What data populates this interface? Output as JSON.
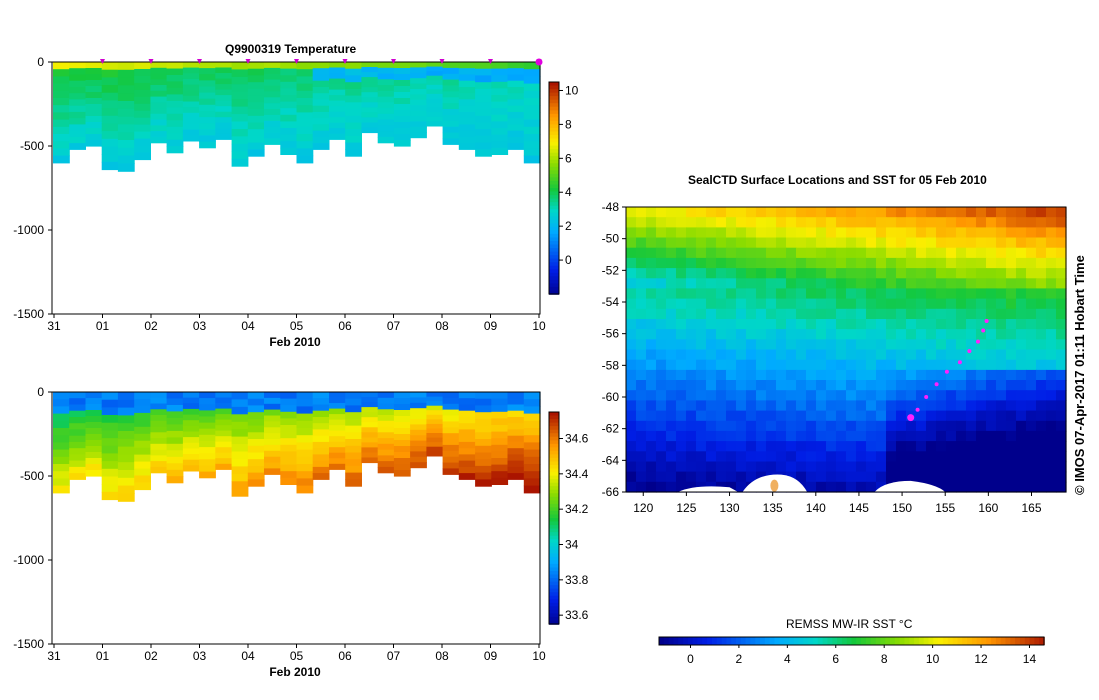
{
  "chart_data": [
    {
      "type": "heatmap",
      "id": "temperature",
      "title": "Q9900319  Temperature",
      "xlabel": "Feb 2010",
      "ylabel": "",
      "x_tick_labels": [
        "31",
        "01",
        "02",
        "03",
        "04",
        "05",
        "06",
        "07",
        "08",
        "09",
        "10"
      ],
      "y_tick_labels": [
        "0",
        "-500",
        "-1000",
        "-1500"
      ],
      "y_ticks": [
        0,
        -500,
        -1000,
        -1500
      ],
      "ylim": [
        -1500,
        0
      ],
      "colorbar": {
        "ticks": [
          10,
          8,
          6,
          4,
          2,
          0
        ],
        "tick_labels": [
          "10",
          "8",
          "6",
          "4",
          "2",
          "0"
        ],
        "range": [
          -2,
          10.5
        ]
      },
      "profile_markers": [
        "01",
        "02",
        "03",
        "04",
        "05",
        "06",
        "07",
        "08",
        "09",
        "10"
      ],
      "profile_depths": [
        600,
        520,
        500,
        640,
        650,
        580,
        480,
        540,
        470,
        510,
        460,
        620,
        560,
        490,
        550,
        600,
        520,
        460,
        560,
        420,
        480,
        500,
        450,
        380,
        490,
        520,
        560,
        550,
        520,
        600
      ]
    },
    {
      "type": "heatmap",
      "id": "salinity",
      "title": "",
      "xlabel": "Feb 2010",
      "ylabel": "",
      "x_tick_labels": [
        "31",
        "01",
        "02",
        "03",
        "04",
        "05",
        "06",
        "07",
        "08",
        "09",
        "10"
      ],
      "y_tick_labels": [
        "0",
        "-500",
        "-1000",
        "-1500"
      ],
      "y_ticks": [
        0,
        -500,
        -1000,
        -1500
      ],
      "ylim": [
        -1500,
        0
      ],
      "colorbar": {
        "ticks": [
          34.6,
          34.4,
          34.2,
          34,
          33.8,
          33.6
        ],
        "tick_labels": [
          "34.6",
          "34.4",
          "34.2",
          "34",
          "33.8",
          "33.6"
        ],
        "range": [
          33.55,
          34.75
        ]
      }
    },
    {
      "type": "heatmap",
      "id": "sst-map",
      "title": "SealCTD Surface Locations and SST for 05 Feb 2010",
      "x_tick_labels": [
        "120",
        "125",
        "130",
        "135",
        "140",
        "145",
        "150",
        "155",
        "160",
        "165"
      ],
      "y_tick_labels": [
        "-48",
        "-50",
        "-52",
        "-54",
        "-56",
        "-58",
        "-60",
        "-62",
        "-64",
        "-66"
      ],
      "xlim": [
        118,
        169
      ],
      "ylim": [
        -66,
        -48
      ],
      "track": [
        [
          151,
          -61.3
        ],
        [
          151.8,
          -60.8
        ],
        [
          152.8,
          -60
        ],
        [
          154,
          -59.2
        ],
        [
          155.2,
          -58.4
        ],
        [
          156.7,
          -57.8
        ],
        [
          157.8,
          -57.1
        ],
        [
          158.8,
          -56.5
        ],
        [
          159.4,
          -55.8
        ],
        [
          159.8,
          -55.2
        ]
      ],
      "colorbar": {
        "label": "REMSS MW-IR SST °C",
        "ticks": [
          0,
          2,
          4,
          6,
          8,
          10,
          12,
          14
        ],
        "tick_labels": [
          "0",
          "2",
          "4",
          "6",
          "8",
          "10",
          "12",
          "14"
        ],
        "range": [
          -1.3,
          14.6
        ]
      }
    }
  ],
  "credit": "© IMOS 07-Apr-2017 01:11 Hobart Time"
}
